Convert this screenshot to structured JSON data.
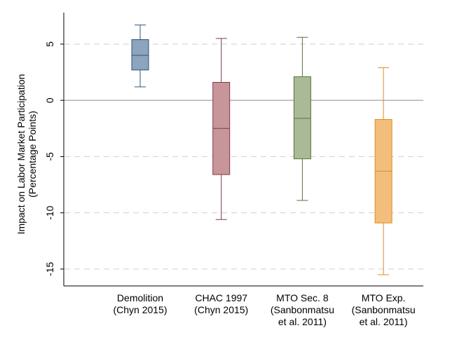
{
  "chart_data": {
    "type": "box",
    "title": "",
    "xlabel": "",
    "ylabel": [
      "Impact on Labor Market Participation",
      "(Percentage Points)"
    ],
    "ylim": [
      -16.5,
      7.8
    ],
    "yticks": [
      5,
      0,
      -5,
      -10,
      -15
    ],
    "ytick_labels": [
      "5",
      "0",
      "-5",
      "-10",
      "-15"
    ],
    "grid": "dashed horizontal at ticks",
    "reference_line": 0,
    "categories": [
      [
        "Demolition",
        "(Chyn 2015)"
      ],
      [
        "CHAC 1997",
        "(Chyn 2015)"
      ],
      [
        "MTO Sec. 8",
        "(Sanbonmatsu",
        "et al. 2011)"
      ],
      [
        "MTO Exp.",
        "(Sanbonmatsu",
        "et al. 2011)"
      ]
    ],
    "series": [
      {
        "whisker_low": 1.2,
        "q1": 2.7,
        "median": 4.0,
        "q3": 5.4,
        "whisker_high": 6.7,
        "fill": "#8ca4bc",
        "stroke": "#2e5478"
      },
      {
        "whisker_low": -10.6,
        "q1": -6.6,
        "median": -2.5,
        "q3": 1.6,
        "whisker_high": 5.5,
        "fill": "#c8969a",
        "stroke": "#7e3b44"
      },
      {
        "whisker_low": -8.9,
        "q1": -5.2,
        "median": -1.6,
        "q3": 2.1,
        "whisker_high": 5.6,
        "fill": "#a9bb96",
        "stroke": "#5b6f3c"
      },
      {
        "whisker_low": -15.5,
        "q1": -10.9,
        "median": -6.3,
        "q3": -1.7,
        "whisker_high": 2.9,
        "fill": "#f3bd7c",
        "stroke": "#d88f1e"
      }
    ]
  }
}
